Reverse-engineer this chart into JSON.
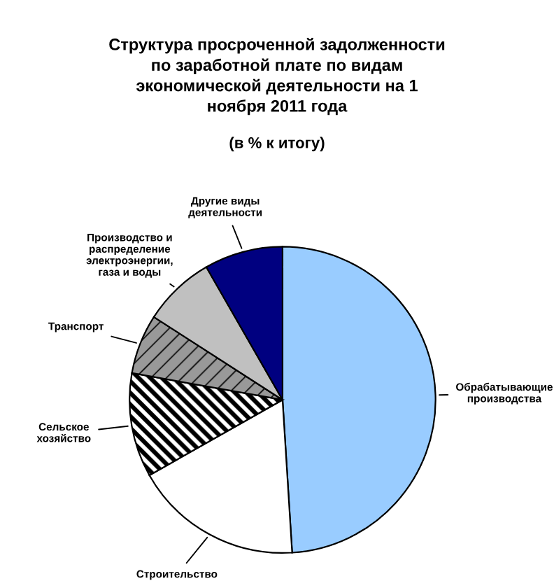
{
  "chart_data": {
    "type": "pie",
    "title": "Структура просроченной задолженности по заработной плате по видам экономической деятельности на 1 ноября 2011 года",
    "subtitle": "(в % к итогу)",
    "categories": [
      "Обрабатывающие производства",
      "Строительство",
      "Сельское хозяйство",
      "Транспорт",
      "Производство и распределение электроэнергии, газа и воды",
      "Другие виды деятельности"
    ],
    "values": [
      49,
      17.8,
      11,
      6.3,
      7.6,
      8.3
    ],
    "colors": [
      "#99ccff",
      "#ffffff",
      "#000000",
      "#999999",
      "#c0c0c0",
      "#000080"
    ],
    "legend": false
  }
}
